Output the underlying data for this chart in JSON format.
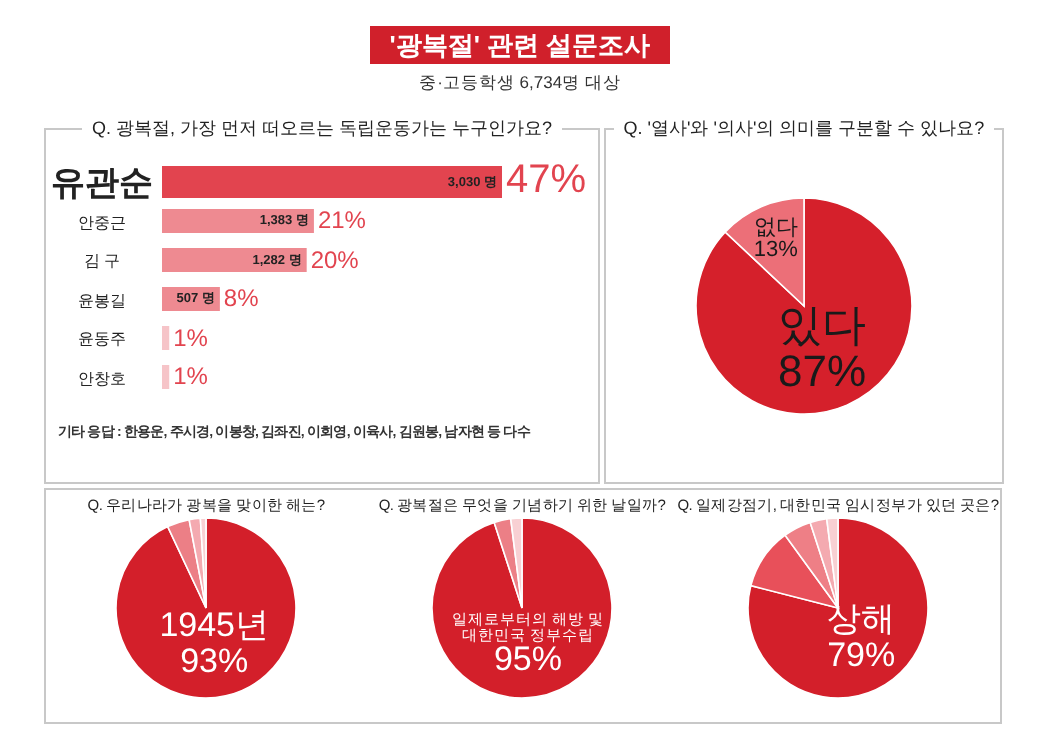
{
  "chart_data": [
    {
      "type": "other",
      "title": "'광복절' 관련 설문조사",
      "subtitle": "중·고등학생 6,734명 대상"
    },
    {
      "type": "bar",
      "orientation": "horizontal",
      "title": "Q. 광복절, 가장 먼저 떠오르는 독립운동가는 누구인가요?",
      "categories": [
        "유관순",
        "안중근",
        "김 구",
        "윤봉길",
        "윤동주",
        "안창호"
      ],
      "values": [
        47,
        21,
        20,
        8,
        1,
        1
      ],
      "value_labels": [
        "47%",
        "21%",
        "20%",
        "8%",
        "1%",
        "1%"
      ],
      "colors": [
        "#e2444f",
        "#ee8a91",
        "#ee8a91",
        "#ee8a91",
        "#f6c4c8",
        "#f6c4c8"
      ],
      "annotations": [
        {
          "text": "3,030 명",
          "x": 47,
          "y": "유관순"
        },
        {
          "text": "1,383 명",
          "x": 21,
          "y": "안중근"
        },
        {
          "text": "1,282 명",
          "x": 20,
          "y": "김 구"
        },
        {
          "text": "507 명",
          "x": 8,
          "y": "윤봉길"
        },
        "기타 응답 : 한용운, 주시경, 이봉창, 김좌진, 이회영, 이육사, 김원봉, 남자현 등 다수"
      ]
    },
    {
      "type": "pie",
      "title": "Q. '열사'와 '의사'의 의미를 구분할 수 있나요?",
      "categories": [
        "있다",
        "없다"
      ],
      "values": [
        87,
        13
      ],
      "value_labels": [
        "87%",
        "13%"
      ],
      "colors": [
        "#d5202b",
        "#ec6f78"
      ]
    },
    {
      "type": "pie",
      "title": "Q. 우리나라가 광복을 맞이한 해는?",
      "categories": [
        "1945년",
        null,
        null,
        null
      ],
      "values": [
        93,
        4,
        2,
        1
      ],
      "value_labels": [
        "93%",
        null,
        null,
        null
      ],
      "colors": [
        "#d31f2a",
        "#ec7f86",
        "#f4aab0",
        "#f8d0d3"
      ]
    },
    {
      "type": "pie",
      "title": "Q. 광복절은 무엇을 기념하기 위한 날일까?",
      "categories": [
        "일제로부터의 해방 및 대한민국 정부수립",
        null,
        null
      ],
      "values": [
        95,
        3,
        2
      ],
      "value_labels": [
        "95%",
        null,
        null
      ],
      "colors": [
        "#d31f2a",
        "#ec7f86",
        "#f8d0d3"
      ]
    },
    {
      "type": "pie",
      "title": "Q. 일제강점기, 대한민국 임시정부가 있던 곳은?",
      "categories": [
        "상해",
        null,
        null,
        null,
        null
      ],
      "values": [
        79,
        11,
        5,
        3,
        2
      ],
      "value_labels": [
        "79%",
        null,
        null,
        null,
        null
      ],
      "colors": [
        "#d31f2a",
        "#e8505a",
        "#ee7f86",
        "#f4aab0",
        "#f8d0d3"
      ]
    }
  ]
}
